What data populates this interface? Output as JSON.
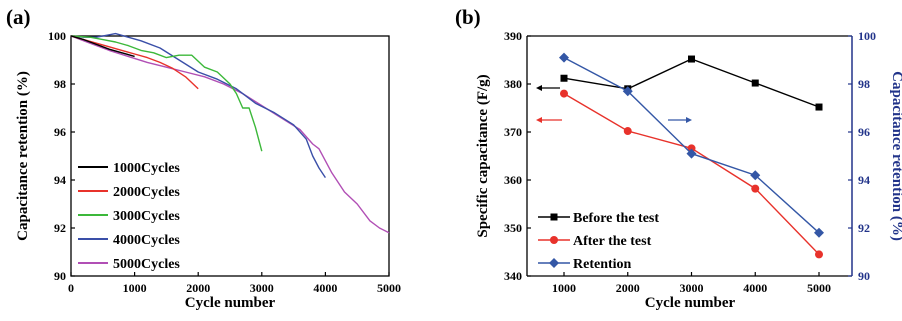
{
  "colors": {
    "black": "#000000",
    "red": "#e8322b",
    "green": "#3cb83a",
    "blue": "#3a4fa8",
    "magenta": "#b14fb5",
    "retention_blue": "#3457a6",
    "right_axis": "#22348a"
  },
  "chart_data": [
    {
      "type": "line",
      "panel_label": "(a)",
      "xlabel": "Cycle number",
      "ylabel": "Capacitance retention (%)",
      "xlim": [
        0,
        5000
      ],
      "ylim": [
        90,
        100
      ],
      "xticks": [
        0,
        1000,
        2000,
        3000,
        4000,
        5000
      ],
      "yticks": [
        90,
        92,
        94,
        96,
        98,
        100
      ],
      "grid": false,
      "legend_position": "bottom-left",
      "series": [
        {
          "name": "1000Cycles",
          "color": "#000000",
          "x": [
            0,
            200,
            400,
            600,
            800,
            1000
          ],
          "y": [
            100.0,
            99.85,
            99.65,
            99.45,
            99.3,
            99.15
          ]
        },
        {
          "name": "2000Cycles",
          "color": "#e8322b",
          "x": [
            0,
            200,
            400,
            600,
            800,
            1000,
            1200,
            1400,
            1600,
            1800,
            2000
          ],
          "y": [
            100.0,
            99.85,
            99.7,
            99.55,
            99.4,
            99.25,
            99.1,
            98.9,
            98.65,
            98.3,
            97.8
          ]
        },
        {
          "name": "3000Cycles",
          "color": "#3cb83a",
          "x": [
            0,
            300,
            500,
            700,
            900,
            1100,
            1300,
            1500,
            1700,
            1900,
            2100,
            2300,
            2500,
            2600,
            2700,
            2800,
            2900,
            3000
          ],
          "y": [
            100.0,
            99.95,
            99.85,
            99.75,
            99.6,
            99.4,
            99.3,
            99.1,
            99.2,
            99.2,
            98.7,
            98.5,
            98.0,
            97.6,
            97.0,
            97.0,
            96.2,
            95.2
          ]
        },
        {
          "name": "4000Cycles",
          "color": "#3a4fa8",
          "x": [
            0,
            200,
            400,
            600,
            700,
            900,
            1100,
            1400,
            1700,
            2000,
            2300,
            2600,
            2900,
            3200,
            3500,
            3700,
            3800,
            3900,
            4000
          ],
          "y": [
            100.0,
            99.95,
            99.95,
            100.05,
            100.1,
            99.95,
            99.8,
            99.5,
            99.0,
            98.5,
            98.2,
            97.8,
            97.2,
            96.8,
            96.3,
            95.7,
            95.0,
            94.5,
            94.1
          ]
        },
        {
          "name": "5000Cycles",
          "color": "#b14fb5",
          "x": [
            0,
            300,
            600,
            900,
            1200,
            1500,
            1800,
            2100,
            2400,
            2700,
            3000,
            3300,
            3600,
            3800,
            3900,
            4100,
            4300,
            4500,
            4700,
            4850,
            5000
          ],
          "y": [
            100.0,
            99.7,
            99.4,
            99.15,
            98.9,
            98.7,
            98.5,
            98.3,
            98.0,
            97.6,
            97.1,
            96.6,
            96.1,
            95.5,
            95.3,
            94.3,
            93.5,
            93.0,
            92.3,
            92.0,
            91.8
          ]
        }
      ]
    },
    {
      "type": "line",
      "panel_label": "(b)",
      "xlabel": "Cycle number",
      "ylabel": "Specific capacitance (F/g)",
      "y2label": "Capacitance retention (%)",
      "categories": [
        "1000",
        "2000",
        "3000",
        "4000",
        "5000"
      ],
      "x": [
        1000,
        2000,
        3000,
        4000,
        5000
      ],
      "ylim": [
        340,
        390
      ],
      "y2lim": [
        90,
        100
      ],
      "yticks": [
        340,
        350,
        360,
        370,
        380,
        390
      ],
      "y2ticks": [
        90,
        92,
        94,
        96,
        98,
        100
      ],
      "grid": false,
      "legend_position": "bottom-left",
      "series": [
        {
          "name": "Before the test",
          "color": "#000000",
          "marker": "square",
          "axis": "left",
          "values": [
            381.2,
            379.0,
            385.2,
            380.2,
            375.2
          ]
        },
        {
          "name": "After the test",
          "color": "#e8322b",
          "marker": "circle",
          "axis": "left",
          "values": [
            378.0,
            370.2,
            366.6,
            358.2,
            344.5
          ]
        },
        {
          "name": "Retention",
          "color": "#3457a6",
          "marker": "diamond",
          "axis": "right",
          "values": [
            99.1,
            97.7,
            95.1,
            94.2,
            91.8
          ]
        }
      ]
    }
  ]
}
